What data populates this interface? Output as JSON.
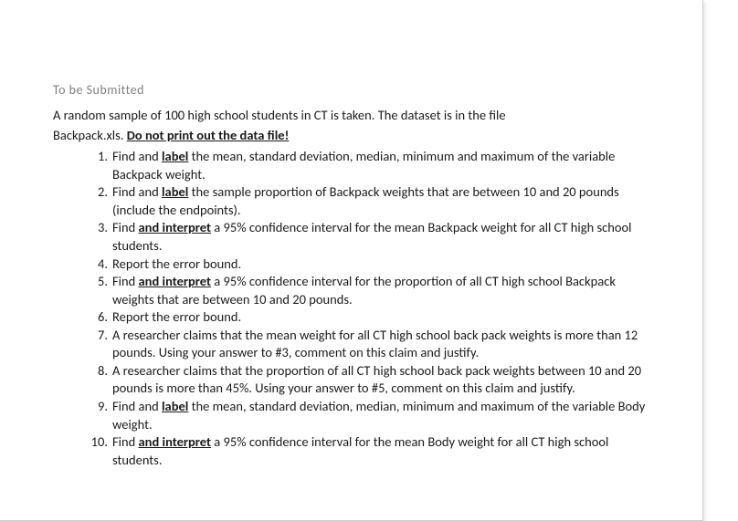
{
  "heading": "To be Submitted",
  "intro_line1": "A random sample of 100 high school students in CT is taken. The dataset is in the file",
  "intro_line2_prefix": "Backpack.xls.  ",
  "intro_line2_underlined": "Do not print out the data file!",
  "items": [
    {
      "parts": [
        {
          "t": "Find and ",
          "ub": false
        },
        {
          "t": "label",
          "ub": true
        },
        {
          "t": " the mean, standard deviation, median, minimum and maximum of the variable Backpack weight.",
          "ub": false
        }
      ]
    },
    {
      "parts": [
        {
          "t": "Find and ",
          "ub": false
        },
        {
          "t": "label",
          "ub": true
        },
        {
          "t": " the sample proportion of Backpack weights that are between 10 and 20 pounds (include the endpoints).",
          "ub": false
        }
      ]
    },
    {
      "parts": [
        {
          "t": "Find ",
          "ub": false
        },
        {
          "t": "and interpret",
          "ub": true
        },
        {
          "t": " a 95% confidence interval for the mean Backpack weight for all CT high school students.",
          "ub": false
        }
      ]
    },
    {
      "parts": [
        {
          "t": "Report the error bound.",
          "ub": false
        }
      ]
    },
    {
      "parts": [
        {
          "t": "Find ",
          "ub": false
        },
        {
          "t": "and interpret",
          "ub": true
        },
        {
          "t": " a 95% confidence interval for the proportion of all CT high school Backpack weights that are between 10 and 20 pounds.",
          "ub": false
        }
      ]
    },
    {
      "parts": [
        {
          "t": "Report the error bound.",
          "ub": false
        }
      ]
    },
    {
      "parts": [
        {
          "t": "A researcher claims that the mean weight for all CT high school back pack weights is more than 12 pounds. Using your answer to #3, comment on this claim and justify.",
          "ub": false
        }
      ]
    },
    {
      "parts": [
        {
          "t": "A researcher claims that the proportion of all CT high school back pack weights between 10 and 20 pounds is more than 45%. Using your answer to #5, comment on this claim and justify.",
          "ub": false
        }
      ]
    },
    {
      "parts": [
        {
          "t": "Find and ",
          "ub": false
        },
        {
          "t": "label",
          "ub": true
        },
        {
          "t": " the mean, standard deviation, median, minimum and maximum of the variable Body weight.",
          "ub": false
        }
      ]
    },
    {
      "parts": [
        {
          "t": "Find ",
          "ub": false
        },
        {
          "t": "and interpret",
          "ub": true
        },
        {
          "t": " a 95% confidence interval for the mean Body weight for all CT high school students.",
          "ub": false
        }
      ]
    }
  ],
  "styles": {
    "heading_color": "#808080",
    "text_color": "#1a1a1a",
    "background_color": "#ffffff",
    "font_family": "Calibri, Arial, sans-serif",
    "heading_fontsize": 14,
    "body_fontsize": 14.5,
    "line_height": 1.35
  }
}
